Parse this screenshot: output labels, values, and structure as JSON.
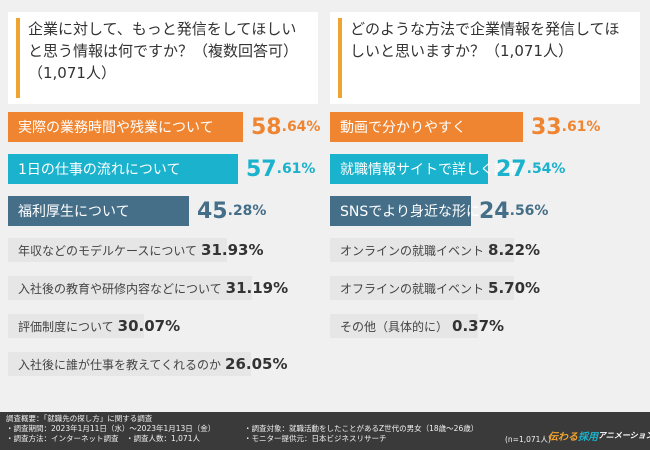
{
  "colors": {
    "accent": "#f0a430",
    "rank1": "#ef8531",
    "rank2": "#1ab2cc",
    "rank3": "#456e88",
    "minor": "#e6e6e6",
    "footer": "#3a3a3a"
  },
  "left": {
    "question": "企業に対して、もっと発信をしてほしいと思う情報は何ですか？（複数回答可）（1,071人）",
    "chart_data": {
      "type": "bar",
      "orientation": "horizontal",
      "categories": [
        "実際の業務時間や残業について",
        "1日の仕事の流れについて",
        "福利厚生について",
        "年収などのモデルケースについて",
        "入社後の教育や研修内容などについて",
        "評価制度について",
        "入社後に誰が仕事を教えてくれるのか"
      ],
      "values": [
        58.64,
        57.61,
        45.28,
        31.93,
        31.19,
        30.07,
        26.05
      ],
      "value_labels": [
        {
          "int": "58",
          "dec": ".64%"
        },
        {
          "int": "57",
          "dec": ".61%"
        },
        {
          "int": "45",
          "dec": ".28%"
        },
        {
          "int": "31",
          "dec": ".93%"
        },
        {
          "int": "31",
          "dec": ".19%"
        },
        {
          "int": "30",
          "dec": ".07%"
        },
        {
          "int": "26",
          "dec": ".05%"
        }
      ],
      "unit": "%",
      "xlim": [
        0,
        60
      ]
    }
  },
  "right": {
    "question": "どのような方法で企業情報を発信してほしいと思いますか？（1,071人）",
    "chart_data": {
      "type": "bar",
      "orientation": "horizontal",
      "categories": [
        "動画で分かりやすく",
        "就職情報サイトで詳しく記載",
        "SNSでより身近な形に",
        "オンラインの就職イベント",
        "オフラインの就職イベント",
        "その他（具体的に）"
      ],
      "values": [
        33.61,
        27.54,
        24.56,
        8.22,
        5.7,
        0.37
      ],
      "value_labels": [
        {
          "int": "33",
          "dec": ".61%"
        },
        {
          "int": "27",
          "dec": ".54%"
        },
        {
          "int": "24",
          "dec": ".56%"
        },
        {
          "int": "8",
          "dec": ".22%"
        },
        {
          "int": "5",
          "dec": ".70%"
        },
        {
          "int": "0",
          "dec": ".37%"
        }
      ],
      "unit": "%",
      "xlim": [
        0,
        40
      ]
    }
  },
  "footer": {
    "survey_title": "調査概要：「就職先の探し方」に関する調査",
    "period": "・調査期間：2023年1月11日（水）〜2023年1月13日（金）",
    "method": "・調査方法：インターネット調査　・調査人数：1,071人",
    "target": "・調査対象：就職活動をしたことがあるZ世代の男女（18歳〜26歳）",
    "panel": "・モニター提供元：日本ビジネスリサーチ",
    "n_note": "(n=1,071人)",
    "logo": {
      "part1": "伝わる",
      "part2": "採用",
      "part3": "アニメーション"
    }
  }
}
